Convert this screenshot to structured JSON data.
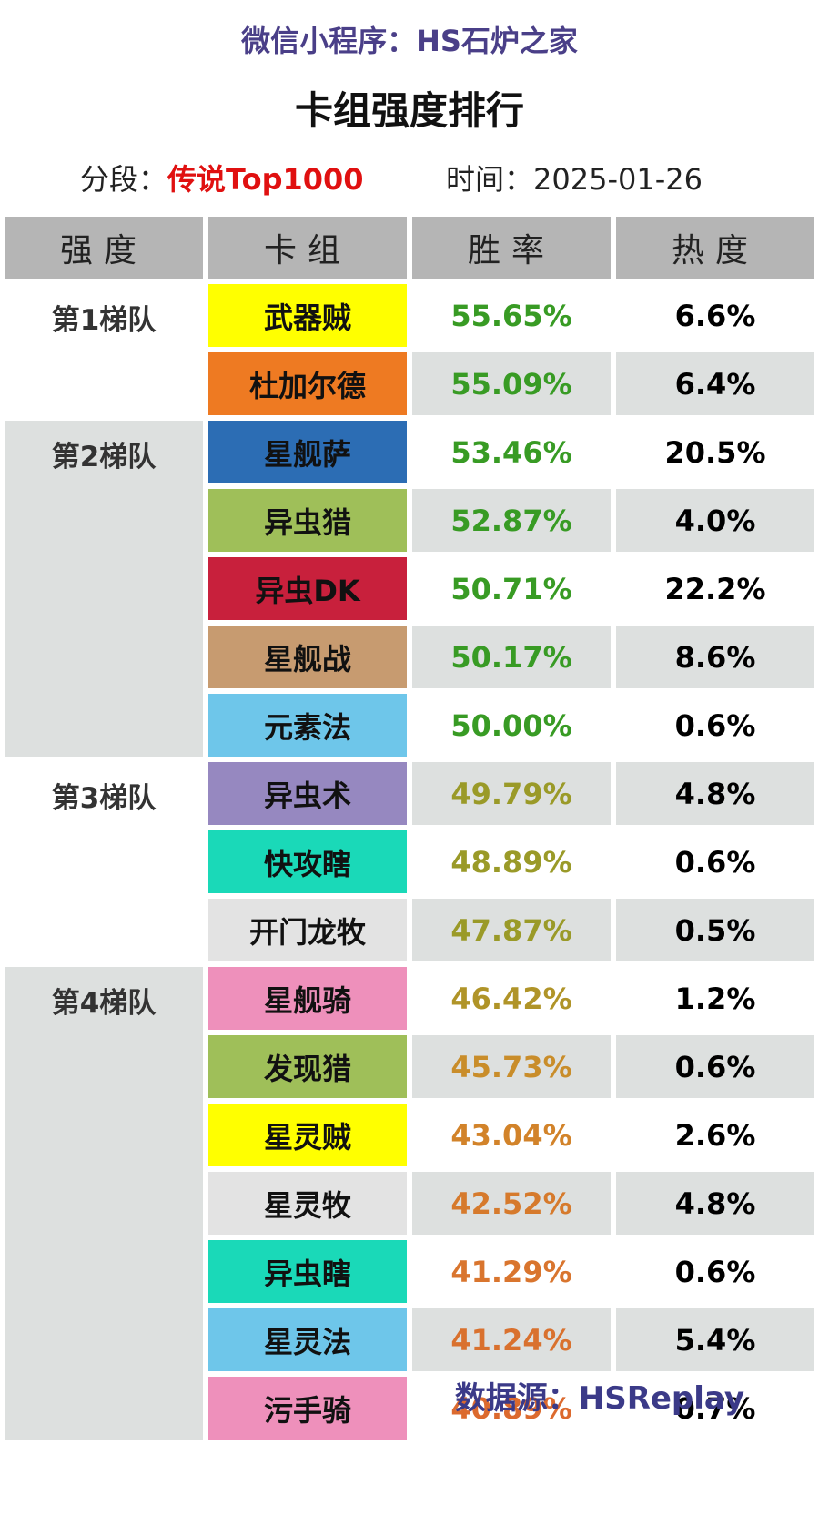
{
  "header": {
    "source_line": "微信小程序：HS石炉之家",
    "title": "卡组强度排行",
    "segment_label": "分段：",
    "segment_value": "传说Top1000",
    "date_label": "时间：",
    "date_value": "2025-01-26"
  },
  "table": {
    "columns": [
      "强度",
      "卡组",
      "胜率",
      "热度"
    ],
    "tiers": [
      {
        "label": "第1梯队",
        "start": 0,
        "count": 2
      },
      {
        "label": "第2梯队",
        "start": 2,
        "count": 5
      },
      {
        "label": "第3梯队",
        "start": 7,
        "count": 3
      },
      {
        "label": "第4梯队",
        "start": 10,
        "count": 7
      }
    ],
    "rows": [
      {
        "deck": "武器贼",
        "winrate": "55.65%",
        "popularity": "6.6%",
        "deck_color": "#ffff00",
        "winrate_color": "#389b24"
      },
      {
        "deck": "杜加尔德",
        "winrate": "55.09%",
        "popularity": "6.4%",
        "deck_color": "#ee7a22",
        "winrate_color": "#389b24"
      },
      {
        "deck": "星舰萨",
        "winrate": "53.46%",
        "popularity": "20.5%",
        "deck_color": "#2c6db4",
        "winrate_color": "#389b24"
      },
      {
        "deck": "异虫猎",
        "winrate": "52.87%",
        "popularity": "4.0%",
        "deck_color": "#9fbf59",
        "winrate_color": "#389b24"
      },
      {
        "deck": "异虫DK",
        "winrate": "50.71%",
        "popularity": "22.2%",
        "deck_color": "#c8203c",
        "winrate_color": "#389b24"
      },
      {
        "deck": "星舰战",
        "winrate": "50.17%",
        "popularity": "8.6%",
        "deck_color": "#c79b70",
        "winrate_color": "#389b24"
      },
      {
        "deck": "元素法",
        "winrate": "50.00%",
        "popularity": "0.6%",
        "deck_color": "#6ec6ea",
        "winrate_color": "#389b24"
      },
      {
        "deck": "异虫术",
        "winrate": "49.79%",
        "popularity": "4.8%",
        "deck_color": "#9688c0",
        "winrate_color": "#9a9a28"
      },
      {
        "deck": "快攻瞎",
        "winrate": "48.89%",
        "popularity": "0.6%",
        "deck_color": "#1ad9b8",
        "winrate_color": "#9a9a28"
      },
      {
        "deck": "开门龙牧",
        "winrate": "47.87%",
        "popularity": "0.5%",
        "deck_color": "#e3e3e3",
        "winrate_color": "#9a9a28"
      },
      {
        "deck": "星舰骑",
        "winrate": "46.42%",
        "popularity": "1.2%",
        "deck_color": "#ee90bb",
        "winrate_color": "#b09428"
      },
      {
        "deck": "发现猎",
        "winrate": "45.73%",
        "popularity": "0.6%",
        "deck_color": "#9fbf59",
        "winrate_color": "#c98d2a"
      },
      {
        "deck": "星灵贼",
        "winrate": "43.04%",
        "popularity": "2.6%",
        "deck_color": "#ffff00",
        "winrate_color": "#d2832a"
      },
      {
        "deck": "星灵牧",
        "winrate": "42.52%",
        "popularity": "4.8%",
        "deck_color": "#e3e3e3",
        "winrate_color": "#d67a2c"
      },
      {
        "deck": "异虫瞎",
        "winrate": "41.29%",
        "popularity": "0.6%",
        "deck_color": "#1ad9b8",
        "winrate_color": "#d9752e"
      },
      {
        "deck": "星灵法",
        "winrate": "41.24%",
        "popularity": "5.4%",
        "deck_color": "#6ec6ea",
        "winrate_color": "#d9712e"
      },
      {
        "deck": "污手骑",
        "winrate": "40.89%",
        "popularity": "0.7%",
        "deck_color": "#ee90bb",
        "winrate_color": "#dc6a2e"
      }
    ]
  },
  "footer": {
    "source": "数据源：HSReplay"
  }
}
